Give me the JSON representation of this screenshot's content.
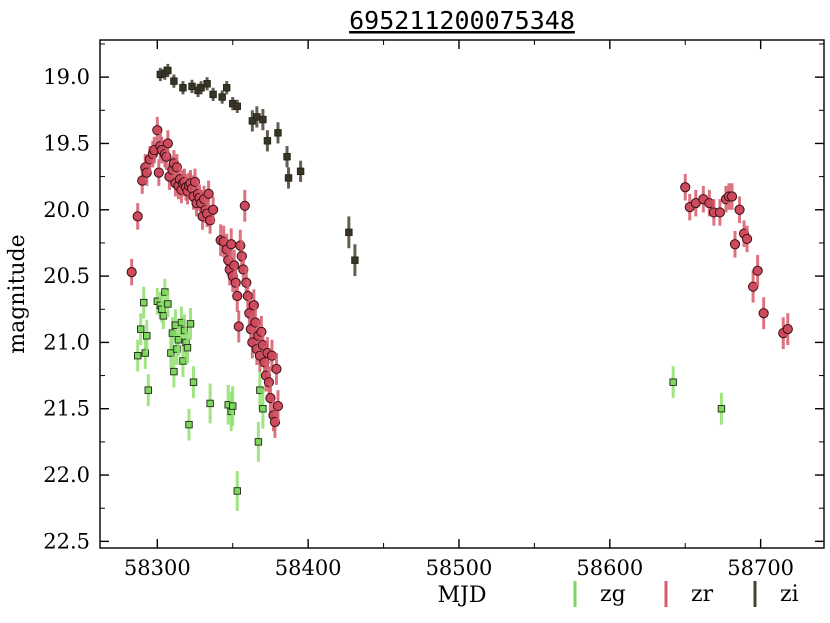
{
  "chart_data": {
    "type": "scatter",
    "title": "695211200075348",
    "xlabel": "MJD",
    "ylabel": "magnitude",
    "xlim": [
      58262,
      58742
    ],
    "ylim": [
      22.55,
      18.72
    ],
    "y_inverted": true,
    "x_ticks": [
      58300,
      58400,
      58500,
      58600,
      58700
    ],
    "y_ticks": [
      19.0,
      19.5,
      20.0,
      20.5,
      21.0,
      21.5,
      22.0,
      22.5
    ],
    "y_tick_labels": [
      "19.0",
      "19.5",
      "20.0",
      "20.5",
      "21.0",
      "21.5",
      "22.0",
      "22.5"
    ],
    "x_tick_labels": [
      "58300",
      "58400",
      "58500",
      "58600",
      "58700"
    ],
    "grid": false,
    "legend_position": "bottom-right",
    "legend": [
      {
        "label": "zg",
        "color": "#7fd65e"
      },
      {
        "label": "zr",
        "color": "#d65a6a"
      },
      {
        "label": "zi",
        "color": "#4a4035"
      }
    ],
    "series": [
      {
        "name": "zg",
        "marker": "square",
        "fill": "#7fd65e",
        "error_color": "#8fdf6e",
        "points": [
          [
            58287,
            21.1,
            0.12
          ],
          [
            58289,
            20.9,
            0.12
          ],
          [
            58291,
            20.7,
            0.12
          ],
          [
            58292,
            21.08,
            0.12
          ],
          [
            58293,
            20.95,
            0.12
          ],
          [
            58294,
            21.36,
            0.12
          ],
          [
            58300,
            20.69,
            0.1
          ],
          [
            58302,
            20.72,
            0.1
          ],
          [
            58303,
            20.75,
            0.1
          ],
          [
            58304,
            20.8,
            0.1
          ],
          [
            58305,
            20.62,
            0.1
          ],
          [
            58307,
            20.71,
            0.1
          ],
          [
            58309,
            21.08,
            0.12
          ],
          [
            58310,
            20.93,
            0.12
          ],
          [
            58311,
            21.22,
            0.12
          ],
          [
            58312,
            20.87,
            0.12
          ],
          [
            58313,
            21.05,
            0.12
          ],
          [
            58314,
            20.98,
            0.12
          ],
          [
            58316,
            20.85,
            0.12
          ],
          [
            58317,
            21.14,
            0.12
          ],
          [
            58318,
            20.91,
            0.12
          ],
          [
            58319,
            21.0,
            0.12
          ],
          [
            58320,
            21.04,
            0.12
          ],
          [
            58321,
            21.62,
            0.12
          ],
          [
            58322,
            20.86,
            0.12
          ],
          [
            58324,
            21.3,
            0.12
          ],
          [
            58335,
            21.46,
            0.15
          ],
          [
            58347,
            21.47,
            0.15
          ],
          [
            58349,
            21.52,
            0.15
          ],
          [
            58350,
            21.48,
            0.15
          ],
          [
            58353,
            22.12,
            0.15
          ],
          [
            58367,
            21.75,
            0.15
          ],
          [
            58368,
            21.36,
            0.15
          ],
          [
            58370,
            21.5,
            0.15
          ],
          [
            58642,
            21.3,
            0.12
          ],
          [
            58674,
            21.5,
            0.12
          ]
        ]
      },
      {
        "name": "zr",
        "marker": "circle",
        "fill": "#cc4a5c",
        "error_color": "#d65a6a",
        "points": [
          [
            58283,
            20.47,
            0.1
          ],
          [
            58287,
            20.05,
            0.1
          ],
          [
            58290,
            19.78,
            0.1
          ],
          [
            58292,
            19.68,
            0.1
          ],
          [
            58293,
            19.72,
            0.1
          ],
          [
            58295,
            19.62,
            0.1
          ],
          [
            58297,
            19.58,
            0.1
          ],
          [
            58298,
            19.55,
            0.1
          ],
          [
            58300,
            19.4,
            0.1
          ],
          [
            58301,
            19.72,
            0.1
          ],
          [
            58302,
            19.52,
            0.1
          ],
          [
            58303,
            19.55,
            0.1
          ],
          [
            58305,
            19.58,
            0.1
          ],
          [
            58306,
            19.6,
            0.1
          ],
          [
            58307,
            19.5,
            0.1
          ],
          [
            58308,
            19.75,
            0.1
          ],
          [
            58310,
            19.7,
            0.1
          ],
          [
            58311,
            19.65,
            0.1
          ],
          [
            58312,
            19.8,
            0.1
          ],
          [
            58313,
            19.68,
            0.1
          ],
          [
            58314,
            19.82,
            0.1
          ],
          [
            58315,
            19.77,
            0.1
          ],
          [
            58316,
            19.85,
            0.1
          ],
          [
            58317,
            19.8,
            0.1
          ],
          [
            58318,
            19.79,
            0.1
          ],
          [
            58319,
            19.83,
            0.1
          ],
          [
            58320,
            19.86,
            0.1
          ],
          [
            58321,
            19.82,
            0.1
          ],
          [
            58322,
            19.8,
            0.1
          ],
          [
            58323,
            19.84,
            0.1
          ],
          [
            58324,
            19.9,
            0.1
          ],
          [
            58325,
            19.79,
            0.1
          ],
          [
            58326,
            19.95,
            0.1
          ],
          [
            58327,
            19.88,
            0.1
          ],
          [
            58328,
            19.91,
            0.1
          ],
          [
            58329,
            19.95,
            0.1
          ],
          [
            58330,
            20.05,
            0.1
          ],
          [
            58331,
            19.92,
            0.1
          ],
          [
            58332,
            20.0,
            0.1
          ],
          [
            58333,
            20.03,
            0.1
          ],
          [
            58334,
            19.88,
            0.1
          ],
          [
            58335,
            20.08,
            0.1
          ],
          [
            58337,
            20.0,
            0.1
          ],
          [
            58342,
            20.23,
            0.12
          ],
          [
            58344,
            20.24,
            0.12
          ],
          [
            58346,
            20.3,
            0.12
          ],
          [
            58347,
            20.38,
            0.12
          ],
          [
            58348,
            20.45,
            0.12
          ],
          [
            58349,
            20.26,
            0.12
          ],
          [
            58350,
            20.5,
            0.12
          ],
          [
            58351,
            20.42,
            0.12
          ],
          [
            58352,
            20.55,
            0.12
          ],
          [
            58353,
            20.65,
            0.12
          ],
          [
            58354,
            20.88,
            0.12
          ],
          [
            58355,
            20.27,
            0.12
          ],
          [
            58356,
            20.35,
            0.12
          ],
          [
            58357,
            20.45,
            0.12
          ],
          [
            58358,
            19.97,
            0.12
          ],
          [
            58359,
            20.55,
            0.12
          ],
          [
            58360,
            20.65,
            0.12
          ],
          [
            58361,
            20.78,
            0.12
          ],
          [
            58362,
            20.9,
            0.12
          ],
          [
            58363,
            21.0,
            0.12
          ],
          [
            58364,
            20.72,
            0.12
          ],
          [
            58365,
            20.85,
            0.12
          ],
          [
            58366,
            21.05,
            0.12
          ],
          [
            58367,
            20.95,
            0.12
          ],
          [
            58368,
            21.1,
            0.12
          ],
          [
            58369,
            20.92,
            0.12
          ],
          [
            58370,
            21.02,
            0.12
          ],
          [
            58371,
            21.15,
            0.12
          ],
          [
            58372,
            21.25,
            0.12
          ],
          [
            58373,
            21.08,
            0.12
          ],
          [
            58374,
            21.3,
            0.12
          ],
          [
            58375,
            21.42,
            0.12
          ],
          [
            58376,
            21.1,
            0.12
          ],
          [
            58377,
            21.55,
            0.12
          ],
          [
            58378,
            21.6,
            0.12
          ],
          [
            58379,
            21.2,
            0.12
          ],
          [
            58380,
            21.48,
            0.12
          ],
          [
            58650,
            19.83,
            0.1
          ],
          [
            58653,
            19.98,
            0.1
          ],
          [
            58657,
            19.95,
            0.1
          ],
          [
            58662,
            19.92,
            0.1
          ],
          [
            58666,
            19.95,
            0.1
          ],
          [
            58669,
            20.02,
            0.1
          ],
          [
            58673,
            20.02,
            0.1
          ],
          [
            58677,
            19.92,
            0.1
          ],
          [
            58679,
            19.9,
            0.1
          ],
          [
            58681,
            19.9,
            0.1
          ],
          [
            58683,
            20.26,
            0.1
          ],
          [
            58686,
            20.0,
            0.1
          ],
          [
            58689,
            20.18,
            0.1
          ],
          [
            58691,
            20.22,
            0.1
          ],
          [
            58695,
            20.58,
            0.12
          ],
          [
            58698,
            20.46,
            0.12
          ],
          [
            58702,
            20.78,
            0.12
          ],
          [
            58715,
            20.93,
            0.12
          ],
          [
            58718,
            20.9,
            0.12
          ]
        ]
      },
      {
        "name": "zi",
        "marker": "square",
        "fill": "#3b3328",
        "error_color": "#4a4035",
        "points": [
          [
            58302,
            18.98,
            0.05
          ],
          [
            58305,
            18.97,
            0.05
          ],
          [
            58307,
            18.95,
            0.05
          ],
          [
            58311,
            19.03,
            0.05
          ],
          [
            58317,
            19.08,
            0.05
          ],
          [
            58323,
            19.07,
            0.05
          ],
          [
            58327,
            19.1,
            0.05
          ],
          [
            58329,
            19.08,
            0.05
          ],
          [
            58333,
            19.05,
            0.05
          ],
          [
            58337,
            19.13,
            0.05
          ],
          [
            58343,
            19.15,
            0.05
          ],
          [
            58346,
            19.08,
            0.05
          ],
          [
            58350,
            19.2,
            0.05
          ],
          [
            58353,
            19.22,
            0.05
          ],
          [
            58363,
            19.33,
            0.08
          ],
          [
            58366,
            19.3,
            0.08
          ],
          [
            58370,
            19.32,
            0.08
          ],
          [
            58373,
            19.48,
            0.08
          ],
          [
            58380,
            19.42,
            0.08
          ],
          [
            58386,
            19.6,
            0.08
          ],
          [
            58387,
            19.76,
            0.08
          ],
          [
            58395,
            19.71,
            0.08
          ],
          [
            58427,
            20.17,
            0.12
          ],
          [
            58431,
            20.38,
            0.12
          ]
        ]
      }
    ]
  }
}
